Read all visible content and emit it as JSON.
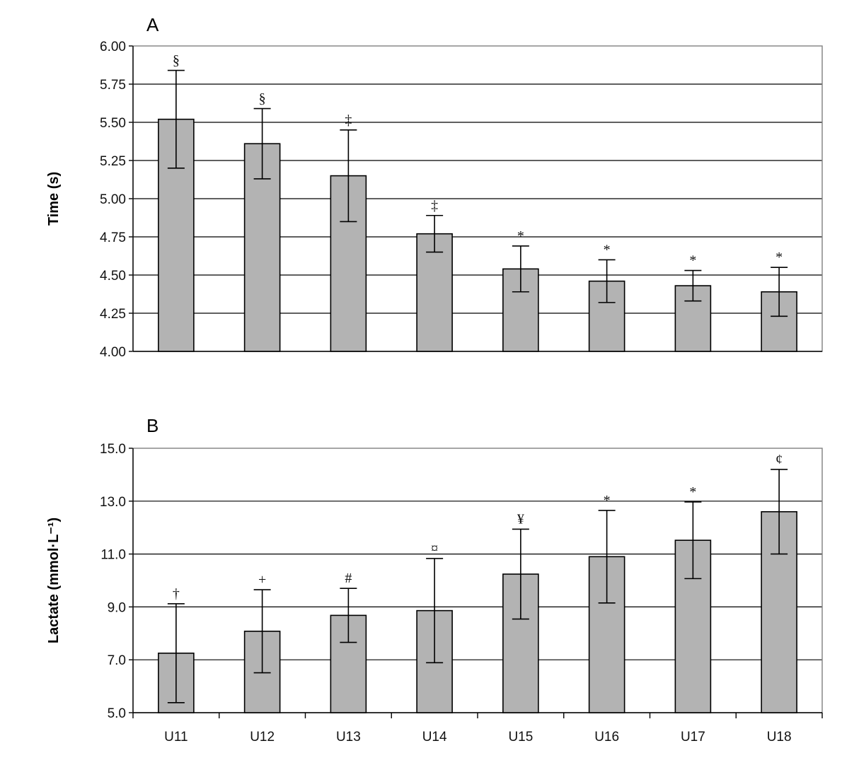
{
  "chart_data": [
    {
      "type": "bar",
      "panel_label": "A",
      "ylabel": "Time (s)",
      "ylim": [
        4.0,
        6.0
      ],
      "yticks": [
        "4.00",
        "4.25",
        "4.50",
        "4.75",
        "5.00",
        "5.25",
        "5.50",
        "5.75",
        "6.00"
      ],
      "grid": true,
      "categories": [
        "U11",
        "U12",
        "U13",
        "U14",
        "U15",
        "U16",
        "U17",
        "U18"
      ],
      "values": [
        5.52,
        5.36,
        5.15,
        4.77,
        4.54,
        4.46,
        4.43,
        4.39
      ],
      "errors": [
        0.32,
        0.23,
        0.3,
        0.12,
        0.15,
        0.14,
        0.1,
        0.16
      ],
      "annotations": [
        "§",
        "§",
        "‡",
        "‡",
        "*",
        "*",
        "*",
        "*"
      ]
    },
    {
      "type": "bar",
      "panel_label": "B",
      "ylabel": "Lactate (mmol·L⁻¹)",
      "ylim": [
        5.0,
        15.0
      ],
      "yticks": [
        "5.0",
        "7.0",
        "9.0",
        "11.0",
        "13.0",
        "15.0"
      ],
      "grid": true,
      "categories": [
        "U11",
        "U12",
        "U13",
        "U14",
        "U15",
        "U16",
        "U17",
        "U18"
      ],
      "values": [
        7.25,
        8.08,
        8.68,
        8.86,
        10.24,
        10.9,
        11.52,
        12.6
      ],
      "errors": [
        1.87,
        1.57,
        1.02,
        1.97,
        1.7,
        1.75,
        1.45,
        1.6
      ],
      "annotations": [
        "†",
        "+",
        "#",
        "¤",
        "¥",
        "*",
        "*",
        "¢"
      ]
    }
  ]
}
